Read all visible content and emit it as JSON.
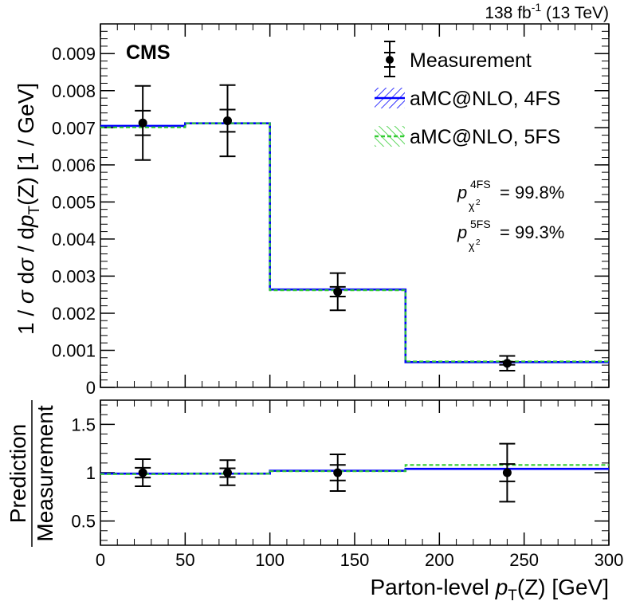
{
  "header": {
    "cms_label": "CMS",
    "lumi_value": "138 fb",
    "lumi_exp": "-1",
    "lumi_energy": " (13 TeV)"
  },
  "chart_data": [
    {
      "type": "line",
      "panel": "main",
      "title": "",
      "ylabel_parts": [
        "1 / ",
        "σ",
        "   d",
        "σ",
        " / d",
        "p",
        "T",
        "(Z)    [1 / GeV]"
      ],
      "ylim": [
        0,
        0.0098
      ],
      "yticks": [
        0,
        0.001,
        0.002,
        0.003,
        0.004,
        0.005,
        0.006,
        0.007,
        0.008,
        0.009
      ],
      "ytick_labels": [
        "0",
        "0.001",
        "0.002",
        "0.003",
        "0.004",
        "0.005",
        "0.006",
        "0.007",
        "0.008",
        "0.009"
      ],
      "bin_edges": [
        0,
        50,
        100,
        180,
        300
      ],
      "series": [
        {
          "name": "Measurement",
          "x": [
            25,
            75,
            140,
            240
          ],
          "values": [
            0.00713,
            0.00719,
            0.00258,
            0.00065
          ],
          "stat_err": [
            0.00033,
            0.0003,
            0.00013,
            4e-05
          ],
          "total_err": [
            0.001,
            0.00096,
            0.0005,
            0.0002
          ]
        },
        {
          "name": "aMC@NLO, 4FS",
          "values": [
            0.00705,
            0.00712,
            0.00264,
            0.00068
          ],
          "color": "#0000ff"
        },
        {
          "name": "aMC@NLO, 5FS",
          "values": [
            0.00701,
            0.00712,
            0.00262,
            0.0007
          ],
          "color": "#33cc33"
        }
      ],
      "legend": [
        "Measurement",
        "aMC@NLO, 4FS",
        "aMC@NLO, 5FS"
      ],
      "annotations": [
        {
          "p_label": "p",
          "sup": "4FS",
          "sub": "χ",
          "sub_sup": "2",
          "value": "= 99.8%"
        },
        {
          "p_label": "p",
          "sup": "5FS",
          "sub": "χ",
          "sub_sup": "2",
          "value": "= 99.3%"
        }
      ]
    },
    {
      "type": "line",
      "panel": "ratio",
      "ylabel_top": "Prediction",
      "ylabel_bottom": "Measurement",
      "xlabel_parts": [
        "Parton-level ",
        "p",
        "T",
        "(Z)   [GeV]"
      ],
      "xlim": [
        0,
        300
      ],
      "ylim": [
        0.25,
        1.75
      ],
      "xticks": [
        0,
        50,
        100,
        150,
        200,
        250,
        300
      ],
      "xtick_labels": [
        "0",
        "50",
        "100",
        "150",
        "200",
        "250",
        "300"
      ],
      "yticks": [
        0.5,
        1,
        1.5
      ],
      "ytick_labels": [
        "0.5",
        "1",
        "1.5"
      ],
      "bin_edges": [
        0,
        50,
        100,
        180,
        300
      ],
      "series": [
        {
          "name": "Measurement",
          "x": [
            25,
            75,
            140,
            240
          ],
          "values": [
            1,
            1,
            1,
            1
          ],
          "stat_err": [
            0.05,
            0.045,
            0.08,
            0.09
          ],
          "total_err": [
            0.14,
            0.13,
            0.19,
            0.3
          ]
        },
        {
          "name": "aMC@NLO, 4FS",
          "values": [
            0.99,
            0.99,
            1.02,
            1.04
          ],
          "color": "#0000ff"
        },
        {
          "name": "aMC@NLO, 5FS",
          "values": [
            0.985,
            0.99,
            1.015,
            1.08
          ],
          "color": "#33cc33"
        }
      ]
    }
  ]
}
